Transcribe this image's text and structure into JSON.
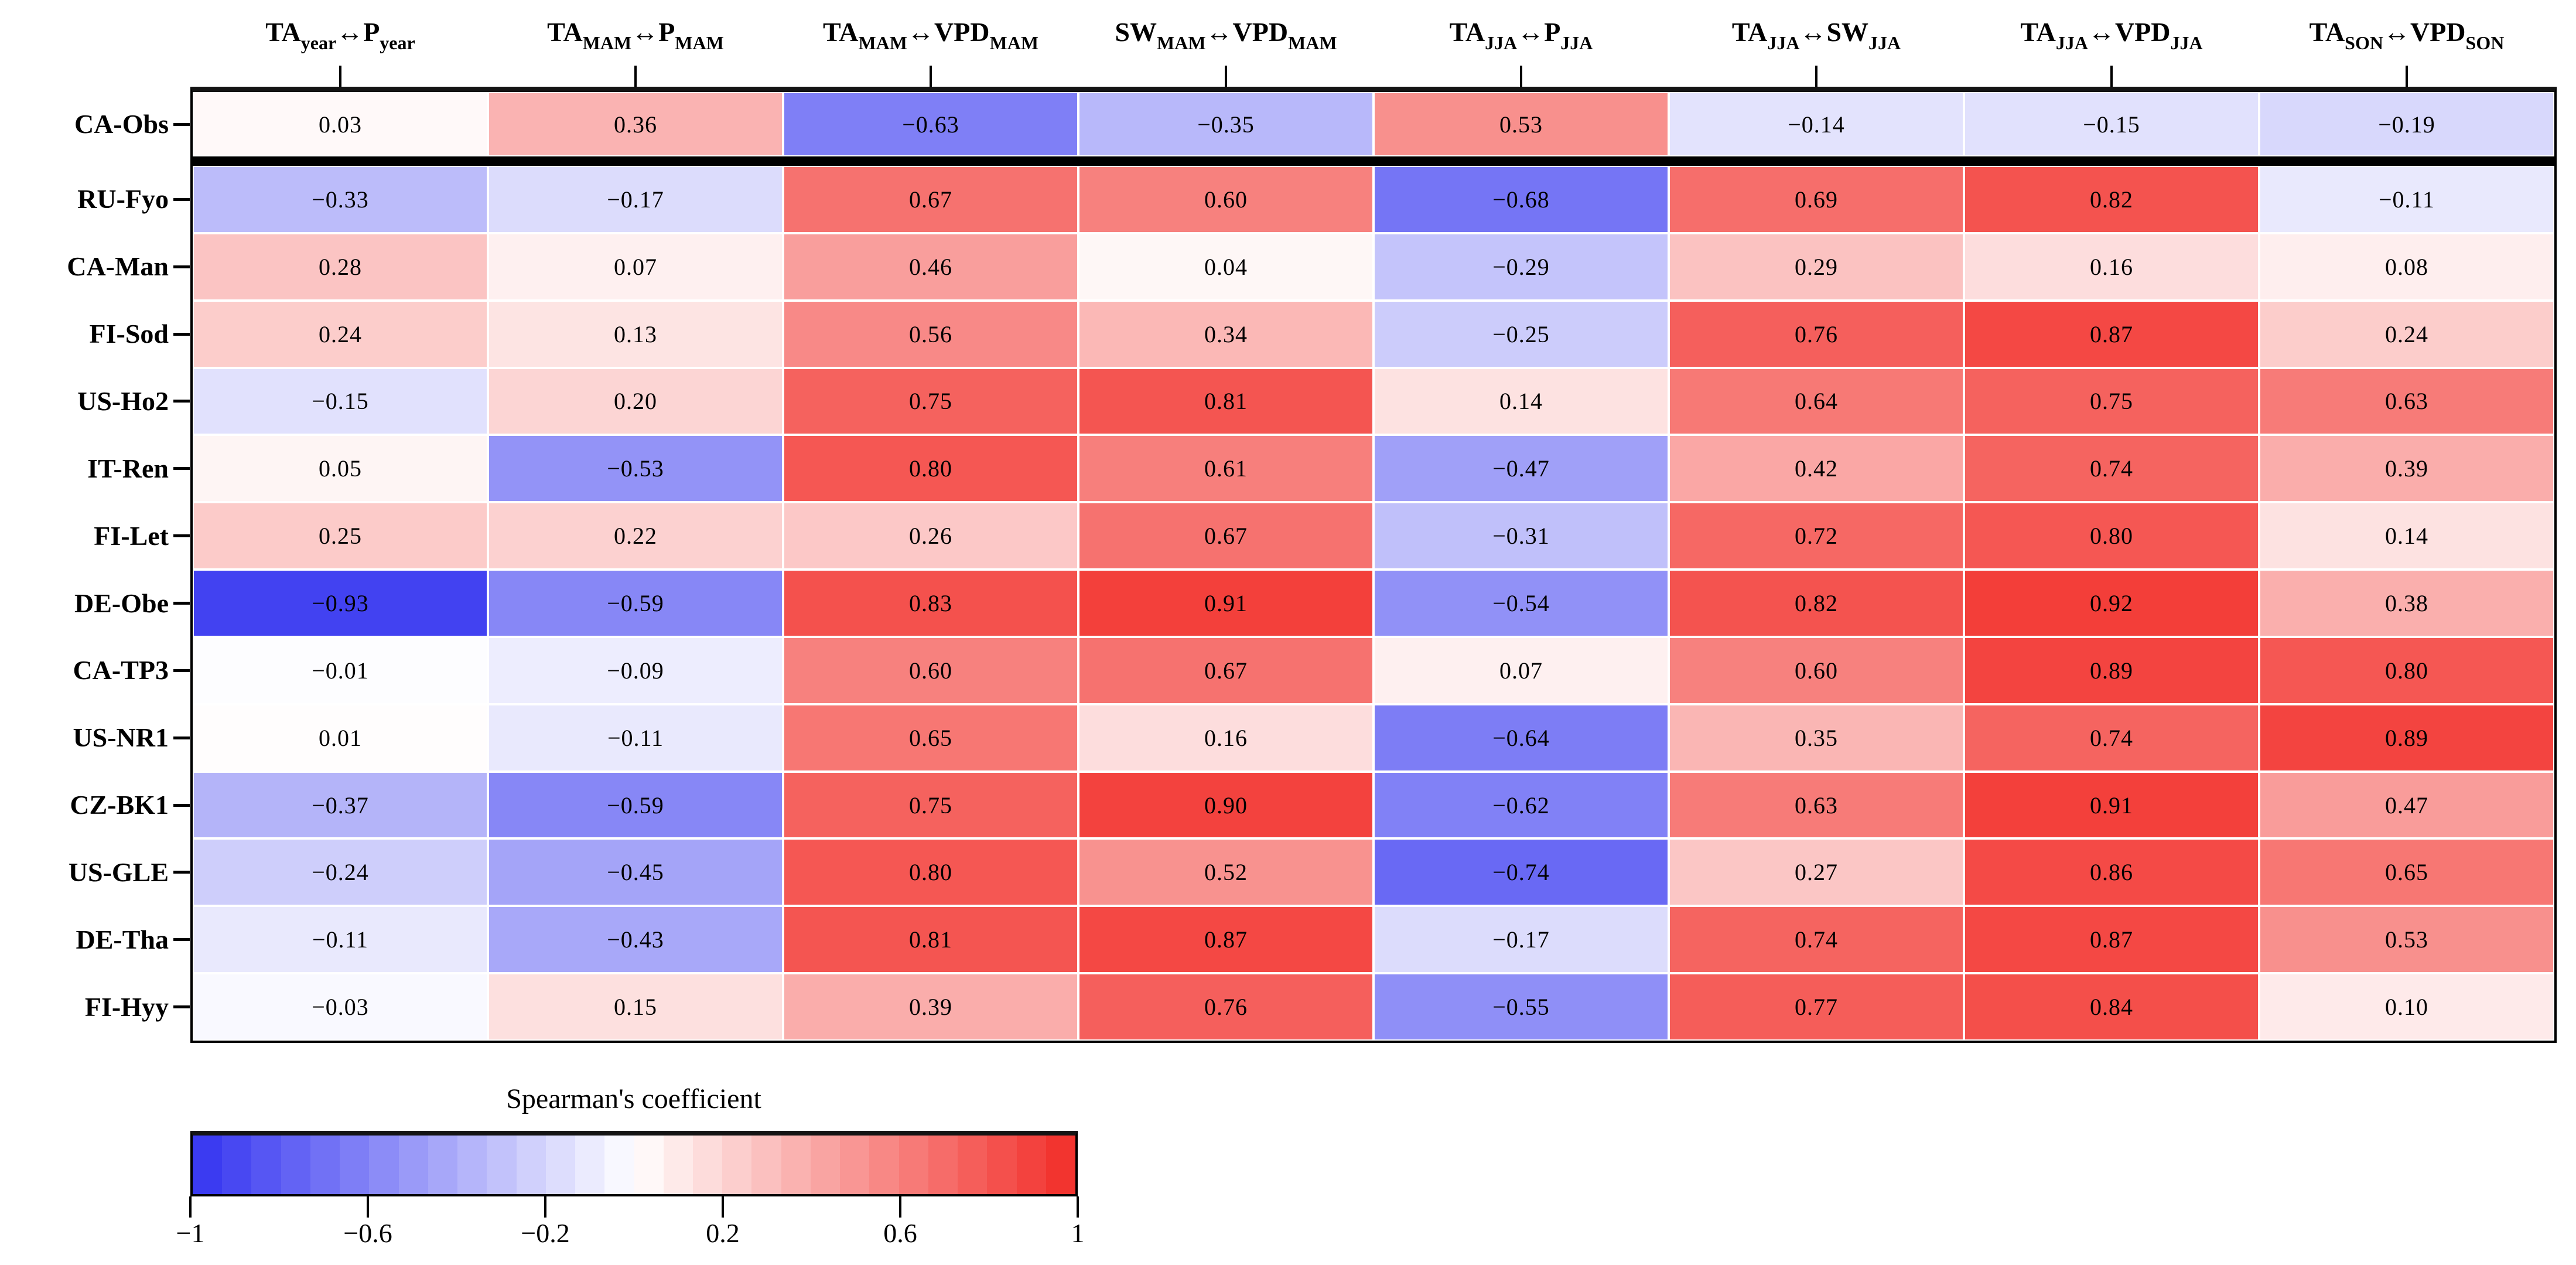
{
  "chart_data": {
    "type": "heatmap",
    "legend": {
      "title": "Spearman's coefficient",
      "tick_labels": [
        "−1",
        "−0.6",
        "−0.2",
        "0.2",
        "0.6",
        "1"
      ],
      "tick_values": [
        -1,
        -0.6,
        -0.2,
        0.2,
        0.6,
        1
      ],
      "range": [
        -1,
        1
      ],
      "steps": 30,
      "position": "bottom-left"
    },
    "colors": {
      "negative_end": "#3434F0",
      "midpoint": "#FFFFFF",
      "positive_end": "#F22D28",
      "separator": "#000000"
    },
    "columns": [
      "TA_{year}↔P_{year}",
      "TA_{MAM}↔P_{MAM}",
      "TA_{MAM}↔VPD_{MAM}",
      "SW_{MAM}↔VPD_{MAM}",
      "TA_{JJA}↔P_{JJA}",
      "TA_{JJA}↔SW_{JJA}",
      "TA_{JJA}↔VPD_{JJA}",
      "TA_{SON}↔VPD_{SON}"
    ],
    "rows": [
      "CA-Obs",
      "RU-Fyo",
      "CA-Man",
      "FI-Sod",
      "US-Ho2",
      "IT-Ren",
      "FI-Let",
      "DE-Obe",
      "CA-TP3",
      "US-NR1",
      "CZ-BK1",
      "US-GLE",
      "DE-Tha",
      "FI-Hyy"
    ],
    "values": [
      [
        0.03,
        0.36,
        -0.63,
        -0.35,
        0.53,
        -0.14,
        -0.15,
        -0.19
      ],
      [
        -0.33,
        -0.17,
        0.67,
        0.6,
        -0.68,
        0.69,
        0.82,
        -0.11
      ],
      [
        0.28,
        0.07,
        0.46,
        0.04,
        -0.29,
        0.29,
        0.16,
        0.08
      ],
      [
        0.24,
        0.13,
        0.56,
        0.34,
        -0.25,
        0.76,
        0.87,
        0.24
      ],
      [
        -0.15,
        0.2,
        0.75,
        0.81,
        0.14,
        0.64,
        0.75,
        0.63
      ],
      [
        0.05,
        -0.53,
        0.8,
        0.61,
        -0.47,
        0.42,
        0.74,
        0.39
      ],
      [
        0.25,
        0.22,
        0.26,
        0.67,
        -0.31,
        0.72,
        0.8,
        0.14
      ],
      [
        -0.93,
        -0.59,
        0.83,
        0.91,
        -0.54,
        0.82,
        0.92,
        0.38
      ],
      [
        -0.01,
        -0.09,
        0.6,
        0.67,
        0.07,
        0.6,
        0.89,
        0.8
      ],
      [
        0.01,
        -0.11,
        0.65,
        0.16,
        -0.64,
        0.35,
        0.74,
        0.89
      ],
      [
        -0.37,
        -0.59,
        0.75,
        0.9,
        -0.62,
        0.63,
        0.91,
        0.47
      ],
      [
        -0.24,
        -0.45,
        0.8,
        0.52,
        -0.74,
        0.27,
        0.86,
        0.65
      ],
      [
        -0.11,
        -0.43,
        0.81,
        0.87,
        -0.17,
        0.74,
        0.87,
        0.53
      ],
      [
        -0.03,
        0.15,
        0.39,
        0.76,
        -0.55,
        0.77,
        0.84,
        0.1
      ]
    ],
    "separator_after_row": 0
  }
}
